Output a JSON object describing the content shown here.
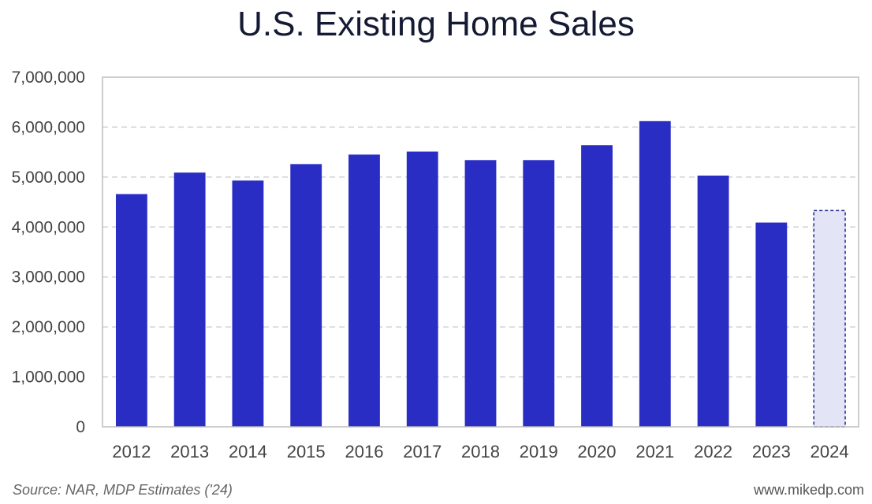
{
  "chart_data": {
    "type": "bar",
    "title": "U.S. Existing Home Sales",
    "xlabel": "",
    "ylabel": "",
    "categories": [
      "2012",
      "2013",
      "2014",
      "2015",
      "2016",
      "2017",
      "2018",
      "2019",
      "2020",
      "2021",
      "2022",
      "2023",
      "2024"
    ],
    "series": [
      {
        "name": "Existing Home Sales",
        "values": [
          4660000,
          5090000,
          4930000,
          5260000,
          5450000,
          5510000,
          5340000,
          5340000,
          5640000,
          6120000,
          5030000,
          4090000,
          4330000
        ],
        "estimated": [
          false,
          false,
          false,
          false,
          false,
          false,
          false,
          false,
          false,
          false,
          false,
          false,
          true
        ]
      }
    ],
    "ylim": [
      0,
      7000000
    ],
    "yticks": [
      0,
      1000000,
      2000000,
      3000000,
      4000000,
      5000000,
      6000000,
      7000000
    ],
    "ytick_labels": [
      "0",
      "1,000,000",
      "2,000,000",
      "3,000,000",
      "4,000,000",
      "5,000,000",
      "6,000,000",
      "7,000,000"
    ],
    "grid": true,
    "colors": {
      "bar": "#2a2dc4",
      "estimate_fill": "#e3e4f6",
      "estimate_stroke": "#1e2a8a",
      "grid": "#d0d0d0",
      "axis": "#bdbdbd"
    }
  },
  "footer": {
    "source": "Source: NAR, MDP Estimates ('24)",
    "credit": "www.mikedp.com"
  }
}
